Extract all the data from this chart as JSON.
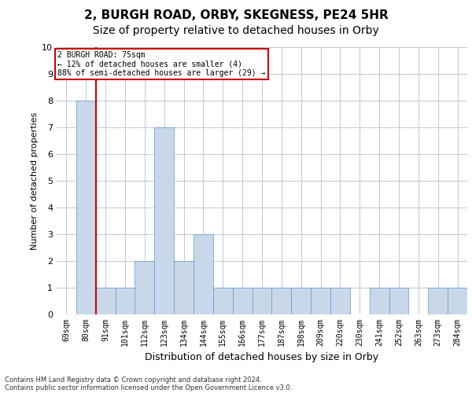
{
  "title": "2, BURGH ROAD, ORBY, SKEGNESS, PE24 5HR",
  "subtitle": "Size of property relative to detached houses in Orby",
  "xlabel": "Distribution of detached houses by size in Orby",
  "ylabel": "Number of detached properties",
  "categories": [
    "69sqm",
    "80sqm",
    "91sqm",
    "101sqm",
    "112sqm",
    "123sqm",
    "134sqm",
    "144sqm",
    "155sqm",
    "166sqm",
    "177sqm",
    "187sqm",
    "198sqm",
    "209sqm",
    "220sqm",
    "230sqm",
    "241sqm",
    "252sqm",
    "263sqm",
    "273sqm",
    "284sqm"
  ],
  "values": [
    0,
    8,
    1,
    1,
    2,
    7,
    2,
    3,
    1,
    1,
    1,
    1,
    1,
    1,
    1,
    0,
    1,
    1,
    0,
    1,
    1
  ],
  "bar_color": "#c8d8e8",
  "bar_edge_color": "#5b9bd5",
  "subject_label": "2 BURGH ROAD: 75sqm",
  "subject_line1": "← 12% of detached houses are smaller (4)",
  "subject_line2": "88% of semi-detached houses are larger (29) →",
  "annotation_box_color": "#cc0000",
  "ylim": [
    0,
    10
  ],
  "yticks": [
    0,
    1,
    2,
    3,
    4,
    5,
    6,
    7,
    8,
    9,
    10
  ],
  "footer1": "Contains HM Land Registry data © Crown copyright and database right 2024.",
  "footer2": "Contains public sector information licensed under the Open Government Licence v3.0.",
  "background_color": "#ffffff",
  "grid_color": "#c0c8d8",
  "title_fontsize": 11,
  "subtitle_fontsize": 10,
  "ylabel_fontsize": 8,
  "xlabel_fontsize": 9,
  "tick_fontsize": 7,
  "annotation_fontsize": 7,
  "footer_fontsize": 6
}
